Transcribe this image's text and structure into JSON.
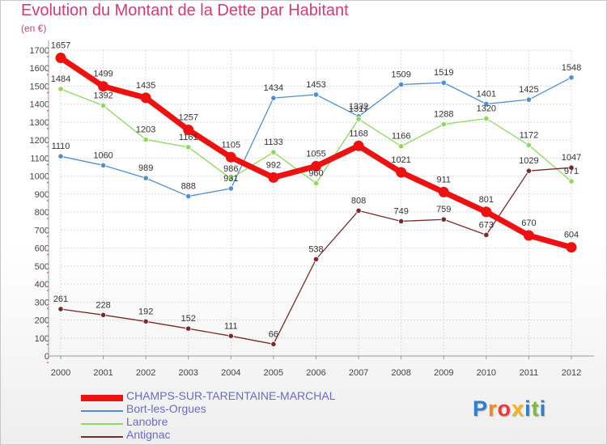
{
  "header": {
    "title": "Evolution du Montant de la Dette par Habitant",
    "unit": "(en €)"
  },
  "logo": {
    "text": "Proxiti",
    "letters": [
      {
        "ch": "P",
        "color": "#2f7fd0"
      },
      {
        "ch": "r",
        "color": "#f08a20"
      },
      {
        "ch": "o",
        "color": "#e83b3b"
      },
      {
        "ch": "x",
        "color": "#f2b51c"
      },
      {
        "ch": "i",
        "color": "#2f7fd0"
      },
      {
        "ch": "t",
        "color": "#7bbd3a"
      },
      {
        "ch": "i",
        "color": "#2f7fd0"
      }
    ]
  },
  "chart_data": {
    "type": "line",
    "title": "Evolution du Montant de la Dette par Habitant",
    "ylabel": "(en €)",
    "xlabel": "",
    "x": [
      2000,
      2001,
      2002,
      2003,
      2004,
      2005,
      2006,
      2007,
      2008,
      2009,
      2010,
      2011,
      2012
    ],
    "ylim": [
      0,
      1700
    ],
    "yticks": [
      0,
      100,
      200,
      300,
      400,
      500,
      600,
      700,
      800,
      900,
      1000,
      1100,
      1200,
      1300,
      1400,
      1500,
      1600,
      1700
    ],
    "grid": true,
    "legend_position": "bottom-left",
    "series": [
      {
        "name": "Bort-les-Orgues",
        "color": "#4f8fd0",
        "values": [
          1110,
          1060,
          989,
          888,
          931,
          1434,
          1453,
          1332,
          1509,
          1519,
          1401,
          1425,
          1548
        ]
      },
      {
        "name": "Lanobre",
        "color": "#8ed85a",
        "values": [
          1484,
          1392,
          1203,
          1161,
          986,
          1133,
          960,
          1317,
          1166,
          1288,
          1320,
          1172,
          971
        ]
      },
      {
        "name": "Antignac",
        "color": "#7a2a2a",
        "values": [
          261,
          228,
          192,
          152,
          111,
          66,
          538,
          808,
          749,
          759,
          673,
          1029,
          1047
        ]
      },
      {
        "name": "CHAMPS-SUR-TARENTAINE-MARCHAL",
        "color": "#ee1111",
        "highlight": true,
        "values": [
          1657,
          1499,
          1435,
          1257,
          1105,
          992,
          1055,
          1168,
          1021,
          911,
          801,
          670,
          604
        ]
      }
    ],
    "legend_order": [
      "CHAMPS-SUR-TARENTAINE-MARCHAL",
      "Bort-les-Orgues",
      "Lanobre",
      "Antignac"
    ]
  }
}
